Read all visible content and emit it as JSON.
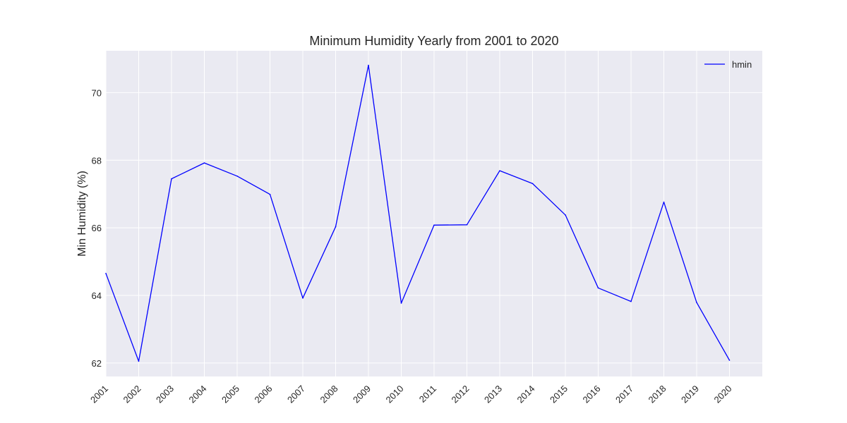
{
  "chart_data": {
    "type": "line",
    "title": "Minimum Humidity Yearly from 2001 to 2020",
    "xlabel": "",
    "ylabel": "Min Humidity (%)",
    "x": [
      "2001",
      "2002",
      "2003",
      "2004",
      "2005",
      "2006",
      "2007",
      "2008",
      "2009",
      "2010",
      "2011",
      "2012",
      "2013",
      "2014",
      "2015",
      "2016",
      "2017",
      "2018",
      "2019",
      "2020"
    ],
    "series": [
      {
        "name": "hmin",
        "color": "#0000ff",
        "values": [
          64.65,
          62.05,
          67.45,
          67.92,
          67.53,
          66.99,
          63.92,
          66.03,
          70.81,
          63.77,
          66.08,
          66.09,
          67.69,
          67.31,
          66.38,
          64.22,
          63.82,
          66.76,
          63.79,
          62.08
        ]
      }
    ],
    "yticks": [
      62,
      64,
      66,
      68,
      70
    ],
    "ylim": [
      61.6,
      71.24
    ],
    "grid": true,
    "legend_position": "top-right",
    "background_color": "#eaeaf2",
    "grid_color": "#ffffff"
  }
}
